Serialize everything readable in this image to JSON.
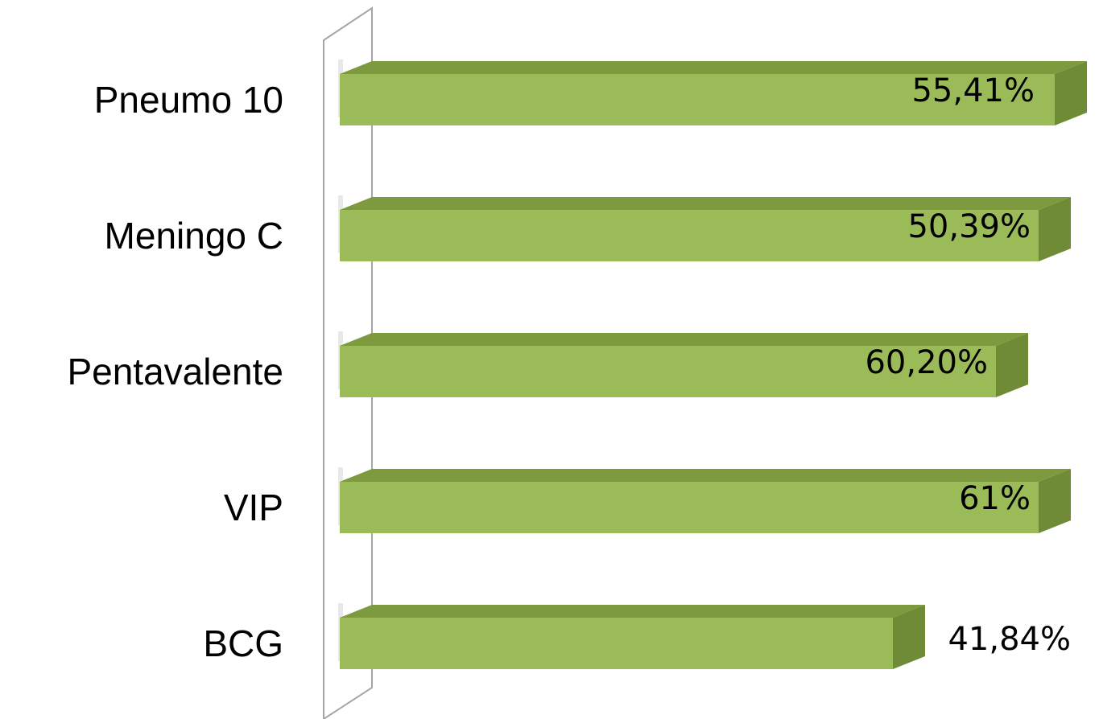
{
  "chart_data": {
    "type": "bar",
    "orientation": "horizontal",
    "style": "3d",
    "categories": [
      "Pneumo 10",
      "Meningo C",
      "Pentavalente",
      "VIP",
      "BCG"
    ],
    "values": [
      55.41,
      50.39,
      60.2,
      61,
      41.84
    ],
    "data_labels": [
      "55,41%",
      "50,39%",
      "60,20%",
      "61%",
      "41,84%"
    ],
    "title": "",
    "xlabel": "",
    "ylabel": "",
    "grid": false,
    "legend": "none",
    "colors": {
      "bar_front": "#9BBB59",
      "bar_top": "#7E9A3F",
      "bar_side": "#6F8B36",
      "axis_wall": "#A6A6A6"
    }
  }
}
